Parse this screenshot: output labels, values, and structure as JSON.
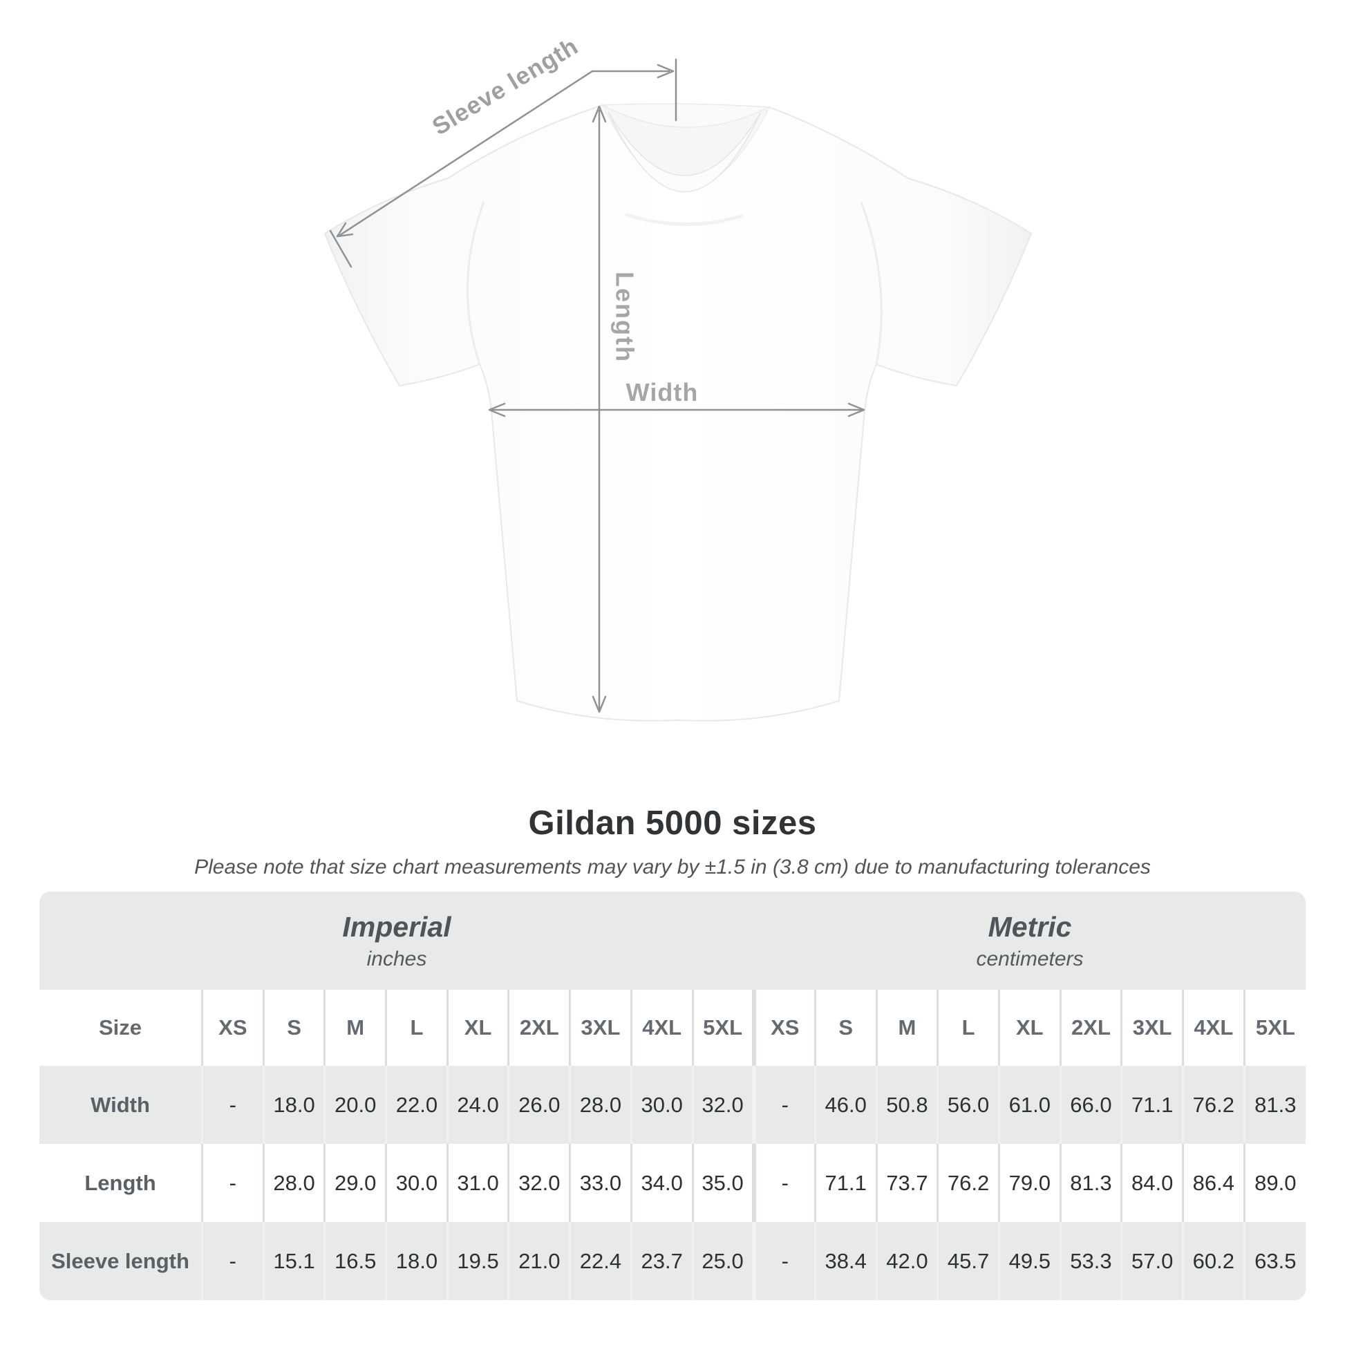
{
  "diagram": {
    "sleeve_length_label": "Sleeve length",
    "length_label": "Length",
    "width_label": "Width"
  },
  "heading": {
    "title": "Gildan 5000 sizes",
    "subtitle": "Please note that size chart measurements may vary by ±1.5 in (3.8 cm) due to manufacturing tolerances"
  },
  "size_chart": {
    "unit_groups": [
      {
        "name": "Imperial",
        "unit": "inches"
      },
      {
        "name": "Metric",
        "unit": "centimeters"
      }
    ],
    "size_column_header": "Size",
    "sizes": [
      "XS",
      "S",
      "M",
      "L",
      "XL",
      "2XL",
      "3XL",
      "4XL",
      "5XL"
    ],
    "rows": [
      {
        "label": "Width",
        "imperial": [
          "-",
          "18.0",
          "20.0",
          "22.0",
          "24.0",
          "26.0",
          "28.0",
          "30.0",
          "32.0"
        ],
        "metric": [
          "-",
          "46.0",
          "50.8",
          "56.0",
          "61.0",
          "66.0",
          "71.1",
          "76.2",
          "81.3"
        ]
      },
      {
        "label": "Length",
        "imperial": [
          "-",
          "28.0",
          "29.0",
          "30.0",
          "31.0",
          "32.0",
          "33.0",
          "34.0",
          "35.0"
        ],
        "metric": [
          "-",
          "71.1",
          "73.7",
          "76.2",
          "79.0",
          "81.3",
          "84.0",
          "86.4",
          "89.0"
        ]
      },
      {
        "label": "Sleeve length",
        "imperial": [
          "-",
          "15.1",
          "16.5",
          "18.0",
          "19.5",
          "21.0",
          "22.4",
          "23.7",
          "25.0"
        ],
        "metric": [
          "-",
          "38.4",
          "42.0",
          "45.7",
          "49.5",
          "53.3",
          "57.0",
          "60.2",
          "63.5"
        ]
      }
    ]
  },
  "colors": {
    "dimension_line": "#8f9294",
    "dimension_label": "#9da0a2",
    "table_band": "#e8e9e9",
    "separator_on_white": "#dcdfe0",
    "title_text": "#303437",
    "value_text": "#2d3033",
    "header_text": "#646a70"
  }
}
